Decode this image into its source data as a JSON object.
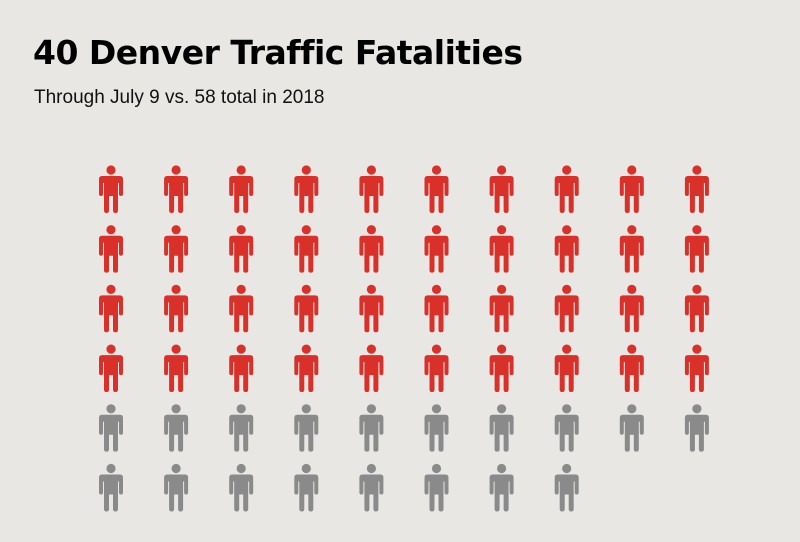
{
  "title": "40 Denver Traffic Fatalities",
  "subtitle": "Through July 9 vs. 58 total in 2018",
  "colors": {
    "background": "#e8e7e3",
    "highlight": "#d9312a",
    "base": "#8a8a8a"
  },
  "chart_data": {
    "type": "pictogram",
    "icon": "person-icon",
    "columns": 10,
    "series": [
      {
        "value": 40,
        "color": "#d9312a"
      },
      {
        "value": 18,
        "color": "#8a8a8a"
      }
    ],
    "total": 58
  }
}
